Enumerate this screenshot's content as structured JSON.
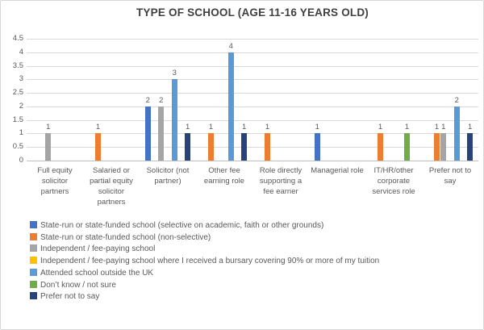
{
  "chart_data": {
    "type": "bar",
    "title": "TYPE OF SCHOOL (AGE 11-16 YEARS OLD)",
    "categories": [
      "Full equity solicitor partners",
      "Salaried or partial equity solicitor partners",
      "Solicitor (not partner)",
      "Other fee earning role",
      "Role directly supporting a fee earner",
      "Managerial role",
      "IT/HR/other corporate services role",
      "Prefer not to say"
    ],
    "series": [
      {
        "name": "State-run or state-funded school (selective on academic, faith or other grounds)",
        "color": "#4472C4",
        "values": [
          0,
          0,
          2,
          0,
          0,
          1,
          0,
          0
        ]
      },
      {
        "name": "State-run or state-funded school (non-selective)",
        "color": "#ED7D31",
        "values": [
          0,
          1,
          0,
          1,
          1,
          0,
          1,
          1
        ]
      },
      {
        "name": "Independent / fee-paying school",
        "color": "#A5A5A5",
        "values": [
          1,
          0,
          2,
          0,
          0,
          0,
          0,
          1
        ]
      },
      {
        "name": "Independent / fee-paying school where I received a bursary covering 90% or more of my tuition",
        "color": "#FFC000",
        "values": [
          0,
          0,
          0,
          0,
          0,
          0,
          0,
          0
        ]
      },
      {
        "name": "Attended school outside the UK",
        "color": "#5B9BD5",
        "values": [
          0,
          0,
          3,
          4,
          0,
          0,
          0,
          2
        ]
      },
      {
        "name": "Don’t know / not sure",
        "color": "#70AD47",
        "values": [
          0,
          0,
          0,
          0,
          0,
          0,
          1,
          0
        ]
      },
      {
        "name": "Prefer not to say",
        "color": "#264478",
        "values": [
          0,
          0,
          1,
          1,
          0,
          0,
          0,
          1
        ]
      }
    ],
    "ylim": [
      0,
      4.5
    ],
    "yticks": [
      0,
      0.5,
      1,
      1.5,
      2,
      2.5,
      3,
      3.5,
      4,
      4.5
    ],
    "grid": true,
    "data_labels": true,
    "legend_position": "bottom-left",
    "styles": {
      "gridline_color": "#D9D9D9",
      "axis_line_color": "#BFBFBF",
      "text_color": "#595959",
      "title_color": "#404040",
      "background": "#FFFFFF"
    }
  }
}
